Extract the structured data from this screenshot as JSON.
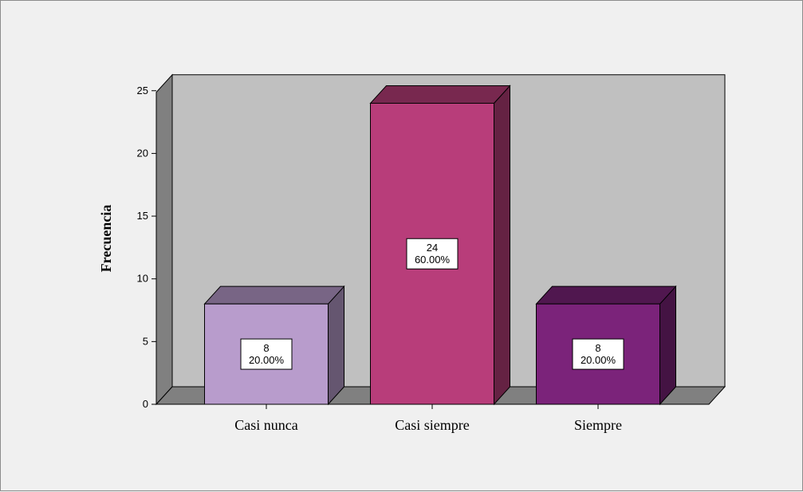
{
  "chart_data": {
    "type": "bar",
    "style": "3d",
    "categories": [
      "Casi nunca",
      "Casi siempre",
      "Siempre"
    ],
    "values": [
      8,
      24,
      8
    ],
    "percent_labels": [
      "20.00%",
      "60.00%",
      "20.00%"
    ],
    "ylabel": "Frecuencia",
    "xlabel": "",
    "ylim": [
      0,
      25
    ],
    "yticks": [
      0,
      5,
      10,
      15,
      20,
      25
    ],
    "grid": false,
    "colors": {
      "bars": [
        "#b89ccc",
        "#b83d7a",
        "#7b237a"
      ],
      "plot_back": "#c0c0c0",
      "plot_floor_side": "#808080",
      "page_background": "#f0f0f0"
    }
  }
}
